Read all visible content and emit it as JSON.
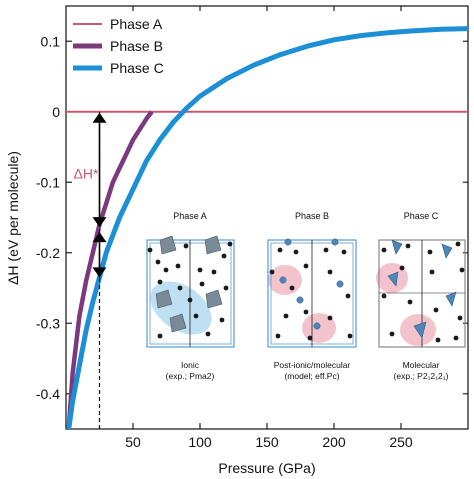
{
  "chart_data": {
    "type": "line",
    "xlabel": "Pressure (GPa)",
    "ylabel": "ΔH (eV per molecule)",
    "xlim": [
      0,
      300
    ],
    "ylim": [
      -0.45,
      0.15
    ],
    "xticks": [
      50,
      100,
      150,
      200,
      250
    ],
    "xtick_labels": [
      "50",
      "100",
      "150",
      "200",
      "250"
    ],
    "yticks": [
      -0.4,
      -0.3,
      -0.2,
      -0.1,
      0,
      0.1
    ],
    "ytick_labels": [
      "-0.4",
      "-0.3",
      "-0.2",
      "-0.1",
      "0",
      "0.1"
    ],
    "legend_position": "top-left",
    "series": [
      {
        "name": "Phase  A",
        "color": "#c85a6e",
        "x": [
          0,
          300
        ],
        "y": [
          0,
          0
        ]
      },
      {
        "name": "Phase  B",
        "color": "#7b3a7e",
        "x": [
          2,
          5,
          10,
          15,
          20,
          25,
          30,
          35,
          40,
          45,
          50,
          55,
          60,
          64
        ],
        "y": [
          -0.45,
          -0.37,
          -0.29,
          -0.24,
          -0.2,
          -0.16,
          -0.13,
          -0.1,
          -0.08,
          -0.06,
          -0.04,
          -0.025,
          -0.01,
          0.0
        ]
      },
      {
        "name": "Phase  C",
        "color": "#1c8fd6",
        "x": [
          2,
          5,
          10,
          15,
          20,
          25,
          30,
          40,
          50,
          60,
          70,
          80,
          90,
          100,
          120,
          140,
          160,
          180,
          200,
          220,
          240,
          260,
          280,
          300
        ],
        "y": [
          -0.45,
          -0.41,
          -0.36,
          -0.31,
          -0.27,
          -0.235,
          -0.2,
          -0.15,
          -0.11,
          -0.07,
          -0.04,
          -0.015,
          0.005,
          0.022,
          0.047,
          0.066,
          0.081,
          0.093,
          0.102,
          0.108,
          0.112,
          0.115,
          0.117,
          0.118
        ]
      }
    ],
    "annotations": [
      {
        "text": "ΔH*",
        "color": "#c85a6e"
      }
    ]
  },
  "inset": {
    "panels": [
      {
        "title": "Phase A",
        "caption_line1": "Ionic",
        "caption_line2": "(exp.; Pma2)"
      },
      {
        "title": "Phase B",
        "caption_line1": "Post-ionic/molecular",
        "caption_line2": "(model; eff.Pc)"
      },
      {
        "title": "Phase C",
        "caption_line1": "Molecular",
        "caption_line2": "(exp.; P2₁2₁2₁)"
      }
    ]
  },
  "colors": {
    "axis": "#222222",
    "inset_box": "#5b9bd5",
    "ionic_highlight": "#bfe0f3",
    "molecular_highlight": "#f2c3cd",
    "atom_dark": "#1a1a1a",
    "atom_blue": "#4f86b8"
  }
}
